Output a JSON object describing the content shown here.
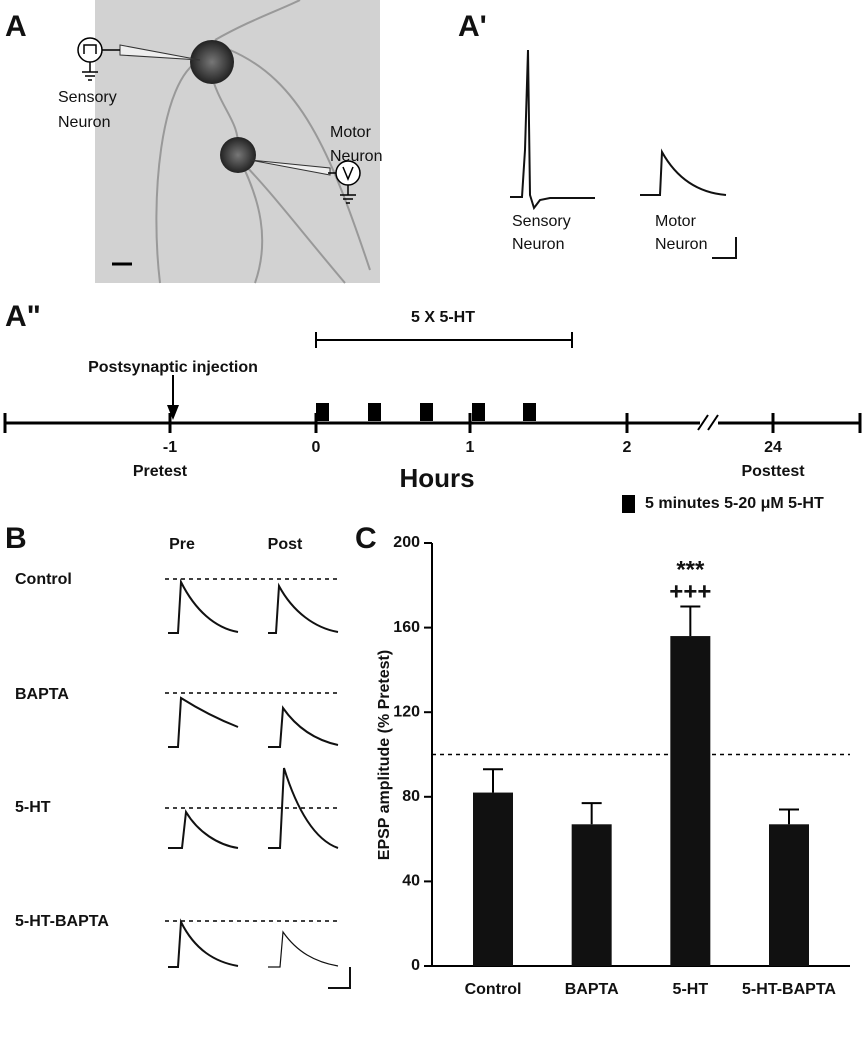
{
  "panel_labels": [
    "A",
    "A'",
    "A\"",
    "B",
    "C"
  ],
  "panel_a": {
    "sensory": [
      "Sensory",
      "Neuron"
    ],
    "motor": [
      "Motor",
      "Neuron"
    ]
  },
  "panel_a_prime": {
    "sensory": [
      "Sensory",
      "Neuron"
    ],
    "motor": [
      "Motor",
      "Neuron"
    ]
  },
  "timeline": {
    "treatment": "5 X 5-HT",
    "injection": "Postsynaptic injection",
    "ticks": [
      "-1",
      "0",
      "1",
      "2",
      "24"
    ],
    "pretest": "Pretest",
    "posttest": "Posttest",
    "axis_label": "Hours",
    "legend": "5 minutes 5-20 μM 5-HT"
  },
  "panel_b": {
    "columns": [
      "Pre",
      "Post"
    ],
    "rows": [
      "Control",
      "BAPTA",
      "5-HT",
      "5-HT-BAPTA"
    ]
  },
  "chart_data": {
    "type": "bar",
    "ylabel": "EPSP amplitude (% Pretest)",
    "categories": [
      "Control",
      "BAPTA",
      "5-HT",
      "5-HT-BAPTA"
    ],
    "values": [
      82,
      67,
      156,
      67
    ],
    "errors": [
      11,
      10,
      14,
      7
    ],
    "color": "#111111",
    "ylim": [
      0,
      200
    ],
    "yticks": [
      0,
      40,
      80,
      120,
      160,
      200
    ],
    "reference_line": 100,
    "annotations": [
      "***",
      "+++"
    ]
  }
}
